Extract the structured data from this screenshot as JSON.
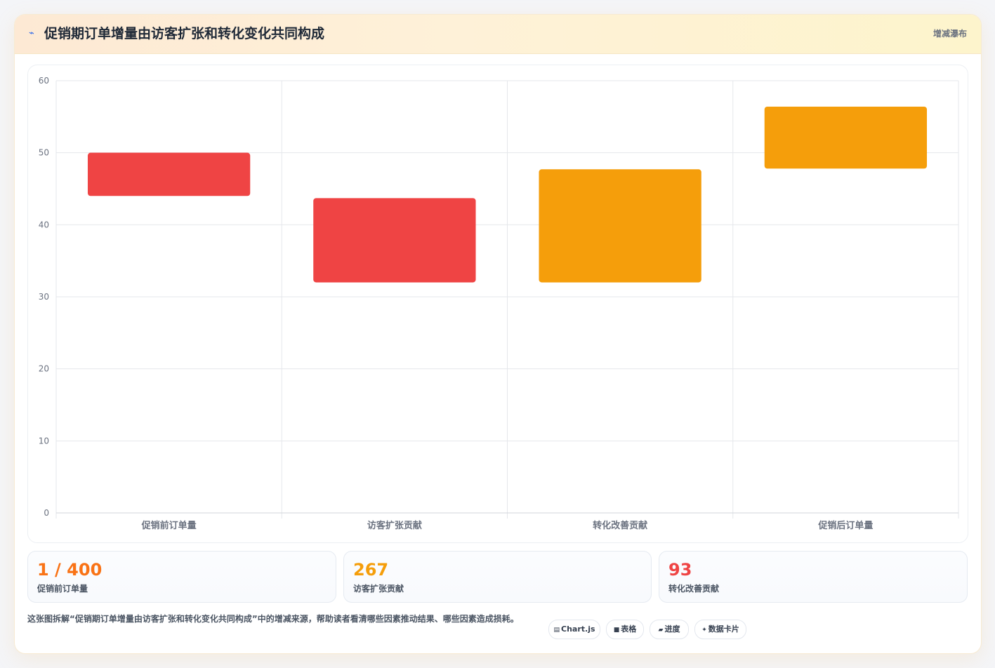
{
  "header": {
    "title": "促销期订单增量由访客扩张和转化变化共同构成",
    "tag": "增减瀑布",
    "icon": "sparkline-icon"
  },
  "chart_data": {
    "type": "bar",
    "subtype": "waterfall",
    "categories": [
      "促销前订单量",
      "访客扩张贡献",
      "转化改善贡献",
      "促销后订单量"
    ],
    "ranges": [
      [
        44,
        50
      ],
      [
        32,
        43.7
      ],
      [
        32,
        47.7
      ],
      [
        47.8,
        56.4
      ]
    ],
    "colors": [
      "#ef4444",
      "#ef4444",
      "#f59e0b",
      "#f59e0b"
    ],
    "ylim": [
      0,
      60
    ],
    "yticks": [
      0,
      10,
      20,
      30,
      40,
      50,
      60
    ],
    "grid": true,
    "legend": "none"
  },
  "stats": [
    {
      "value": "1 / 400",
      "label": "促销前订单量",
      "color": "#f97316"
    },
    {
      "value": "267",
      "label": "访客扩张贡献",
      "color": "#f59e0b"
    },
    {
      "value": "93",
      "label": "转化改善贡献",
      "color": "#ef4444"
    }
  ],
  "footer": {
    "description": "这张图拆解“促销期订单增量由访客扩张和转化变化共同构成”中的增减来源，帮助读者看清哪些因素推动结果、哪些因素造成损耗。",
    "chips": [
      {
        "glyph": "▤",
        "label": "Chart.js"
      },
      {
        "glyph": "■",
        "label": "表格"
      },
      {
        "glyph": "▰",
        "label": "进度"
      },
      {
        "glyph": "✦",
        "label": "数据卡片"
      }
    ]
  }
}
